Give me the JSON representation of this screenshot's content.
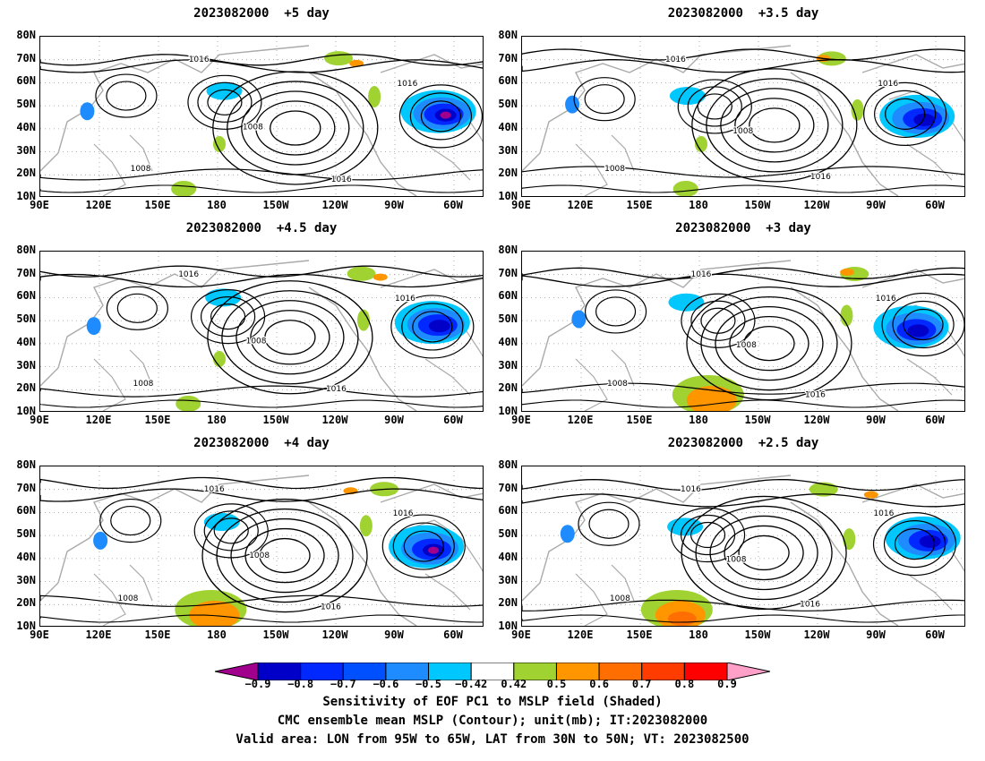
{
  "panels": [
    {
      "title": "2023082000  +5 day"
    },
    {
      "title": "2023082000  +3.5 day"
    },
    {
      "title": "2023082000  +4.5 day"
    },
    {
      "title": "2023082000  +3 day"
    },
    {
      "title": "2023082000  +4 day"
    },
    {
      "title": "2023082000  +2.5 day"
    }
  ],
  "lat_labels": [
    "80N",
    "70N",
    "60N",
    "50N",
    "40N",
    "30N",
    "20N",
    "10N"
  ],
  "lon_labels": [
    "90E",
    "120E",
    "150E",
    "180",
    "150W",
    "120W",
    "90W",
    "60W"
  ],
  "contour_label": "1016",
  "contour_label_low": "1008",
  "colorbar": {
    "ticks": [
      "−0.9",
      "−0.8",
      "−0.7",
      "−0.6",
      "−0.5",
      "−0.42",
      "0.42",
      "0.5",
      "0.6",
      "0.7",
      "0.8",
      "0.9"
    ],
    "colors": [
      "#a0008c",
      "#0000c8",
      "#0028ff",
      "#0050ff",
      "#1e8cff",
      "#00c8ff",
      "#ffffff",
      "#a0d232",
      "#ff9600",
      "#ff6e00",
      "#ff3c00",
      "#ff0000",
      "#ffa0c8"
    ]
  },
  "caption": {
    "line1": "Sensitivity of EOF PC1 to MSLP field (Shaded)",
    "line2": "CMC ensemble mean MSLP (Contour); unit(mb); IT:2023082000",
    "line3": "Valid area: LON from 95W to 65W, LAT from 30N to 50N; VT: 2023082500"
  }
}
